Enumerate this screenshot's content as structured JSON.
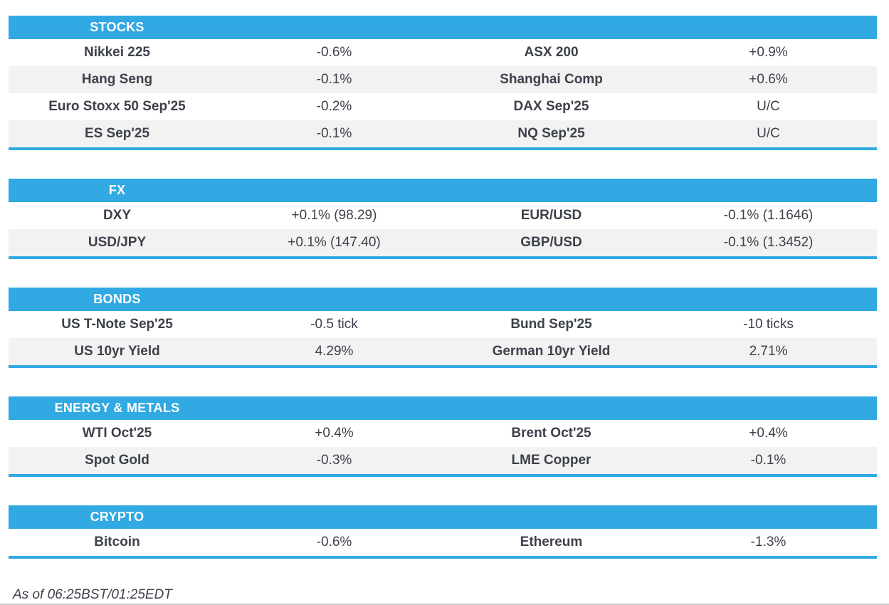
{
  "colors": {
    "accent_blue": "#31a9e2",
    "row_alt_gray": "#f2f2f2",
    "text_dark": "#3d414b",
    "header_text": "#ffffff",
    "bottom_rule_gray": "#cbcbcb"
  },
  "sections": [
    {
      "title": "STOCKS",
      "rows": [
        {
          "left_name": "Nikkei 225",
          "left_value": "-0.6%",
          "right_name": "ASX 200",
          "right_value": "+0.9%"
        },
        {
          "left_name": "Hang Seng",
          "left_value": "-0.1%",
          "right_name": "Shanghai Comp",
          "right_value": "+0.6%"
        },
        {
          "left_name": "Euro Stoxx 50 Sep'25",
          "left_value": "-0.2%",
          "right_name": "DAX Sep'25",
          "right_value": "U/C"
        },
        {
          "left_name": "ES Sep'25",
          "left_value": "-0.1%",
          "right_name": "NQ Sep'25",
          "right_value": "U/C"
        }
      ]
    },
    {
      "title": "FX",
      "rows": [
        {
          "left_name": "DXY",
          "left_value": "+0.1% (98.29)",
          "right_name": "EUR/USD",
          "right_value": "-0.1% (1.1646)"
        },
        {
          "left_name": "USD/JPY",
          "left_value": "+0.1% (147.40)",
          "right_name": "GBP/USD",
          "right_value": "-0.1% (1.3452)"
        }
      ]
    },
    {
      "title": "BONDS",
      "rows": [
        {
          "left_name": "US T-Note Sep'25",
          "left_value": "-0.5 tick",
          "right_name": "Bund Sep'25",
          "right_value": "-10 ticks"
        },
        {
          "left_name": "US 10yr Yield",
          "left_value": "4.29%",
          "right_name": "German 10yr Yield",
          "right_value": "2.71%"
        }
      ]
    },
    {
      "title": "ENERGY & METALS",
      "rows": [
        {
          "left_name": "WTI Oct'25",
          "left_value": "+0.4%",
          "right_name": "Brent Oct'25",
          "right_value": "+0.4%"
        },
        {
          "left_name": "Spot Gold",
          "left_value": "-0.3%",
          "right_name": "LME Copper",
          "right_value": "-0.1%"
        }
      ]
    },
    {
      "title": "CRYPTO",
      "rows": [
        {
          "left_name": "Bitcoin",
          "left_value": "-0.6%",
          "right_name": "Ethereum",
          "right_value": "-1.3%"
        }
      ]
    }
  ],
  "footer": {
    "as_of": "As of 06:25BST/01:25EDT"
  }
}
